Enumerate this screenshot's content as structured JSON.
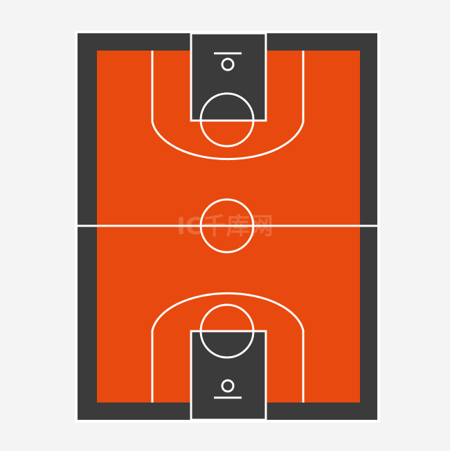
{
  "background_color": "#f4f4f4",
  "colors": {
    "court_border": "#3b3b3b",
    "court_floor": "#e8490f",
    "paint_area": "#3b3b3b",
    "line": "#ffffff"
  },
  "watermark": {
    "text": "IC千库网",
    "icon": "logo-watermark"
  },
  "court": {
    "sport": "basketball",
    "halves": 2,
    "icons": [
      "basket-hoop-icon",
      "center-circle-icon",
      "free-throw-circle-icon",
      "three-point-arc-icon"
    ]
  }
}
